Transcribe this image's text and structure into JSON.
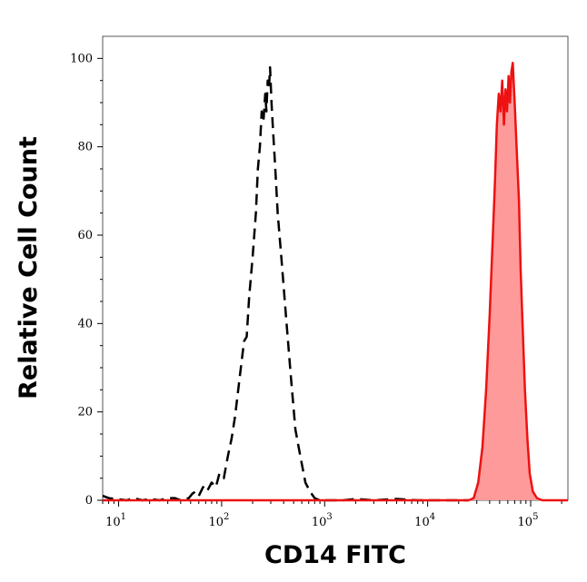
{
  "chart_data": {
    "type": "area",
    "xlabel": "CD14 FITC",
    "ylabel": "Relative Cell Count",
    "x_scale": "log",
    "xlim": [
      7,
      230000
    ],
    "ylim": [
      0,
      105
    ],
    "x_ticks": [
      {
        "base": "10",
        "exp": "1",
        "value": 10
      },
      {
        "base": "10",
        "exp": "2",
        "value": 100
      },
      {
        "base": "10",
        "exp": "3",
        "value": 1000
      },
      {
        "base": "10",
        "exp": "4",
        "value": 10000
      },
      {
        "base": "10",
        "exp": "5",
        "value": 100000
      }
    ],
    "y_ticks": [
      "0",
      "20",
      "40",
      "60",
      "80",
      "100"
    ],
    "grid": false,
    "series": [
      {
        "style": "dashed-black-line",
        "color": "#000000",
        "points": [
          [
            7,
            1
          ],
          [
            8,
            0.5
          ],
          [
            12,
            0
          ],
          [
            14,
            0.5
          ],
          [
            17,
            0
          ],
          [
            20,
            0.3
          ],
          [
            25,
            0
          ],
          [
            30,
            0.5
          ],
          [
            35,
            0.5
          ],
          [
            40,
            0
          ],
          [
            48,
            0.5
          ],
          [
            52,
            1.5
          ],
          [
            56,
            2
          ],
          [
            60,
            1
          ],
          [
            66,
            3
          ],
          [
            72,
            2
          ],
          [
            80,
            4
          ],
          [
            88,
            3
          ],
          [
            95,
            6
          ],
          [
            105,
            5
          ],
          [
            115,
            10
          ],
          [
            125,
            14
          ],
          [
            135,
            19
          ],
          [
            150,
            28
          ],
          [
            165,
            36
          ],
          [
            175,
            37
          ],
          [
            185,
            46
          ],
          [
            200,
            55
          ],
          [
            215,
            65
          ],
          [
            225,
            75
          ],
          [
            235,
            80
          ],
          [
            245,
            88
          ],
          [
            255,
            86
          ],
          [
            265,
            92
          ],
          [
            272,
            88
          ],
          [
            280,
            95
          ],
          [
            288,
            93
          ],
          [
            295,
            98
          ],
          [
            305,
            90
          ],
          [
            315,
            84
          ],
          [
            330,
            76
          ],
          [
            350,
            65
          ],
          [
            380,
            55
          ],
          [
            420,
            42
          ],
          [
            470,
            28
          ],
          [
            520,
            16
          ],
          [
            580,
            10
          ],
          [
            650,
            4
          ],
          [
            720,
            2
          ],
          [
            800,
            0.5
          ],
          [
            900,
            0
          ],
          [
            1500,
            0
          ],
          [
            2000,
            0.3
          ],
          [
            3000,
            0
          ],
          [
            5000,
            0.3
          ],
          [
            8000,
            0
          ],
          [
            15000,
            0
          ],
          [
            25000,
            0
          ]
        ]
      },
      {
        "style": "filled-red",
        "color": "#ee1111",
        "fill": "#ff9a9a",
        "points": [
          [
            7,
            0
          ],
          [
            1000,
            0
          ],
          [
            25000,
            0
          ],
          [
            28000,
            0.5
          ],
          [
            31000,
            4
          ],
          [
            34000,
            12
          ],
          [
            37000,
            25
          ],
          [
            40000,
            42
          ],
          [
            43000,
            60
          ],
          [
            45000,
            72
          ],
          [
            47000,
            85
          ],
          [
            49000,
            92
          ],
          [
            51000,
            88
          ],
          [
            53000,
            95
          ],
          [
            55000,
            85
          ],
          [
            57000,
            93
          ],
          [
            59000,
            88
          ],
          [
            61000,
            96
          ],
          [
            63000,
            90
          ],
          [
            65000,
            97
          ],
          [
            67000,
            99
          ],
          [
            70000,
            90
          ],
          [
            73000,
            80
          ],
          [
            77000,
            68
          ],
          [
            80000,
            52
          ],
          [
            84000,
            38
          ],
          [
            88000,
            25
          ],
          [
            93000,
            14
          ],
          [
            98000,
            6
          ],
          [
            105000,
            2
          ],
          [
            115000,
            0.5
          ],
          [
            130000,
            0
          ],
          [
            230000,
            0
          ]
        ]
      }
    ]
  }
}
